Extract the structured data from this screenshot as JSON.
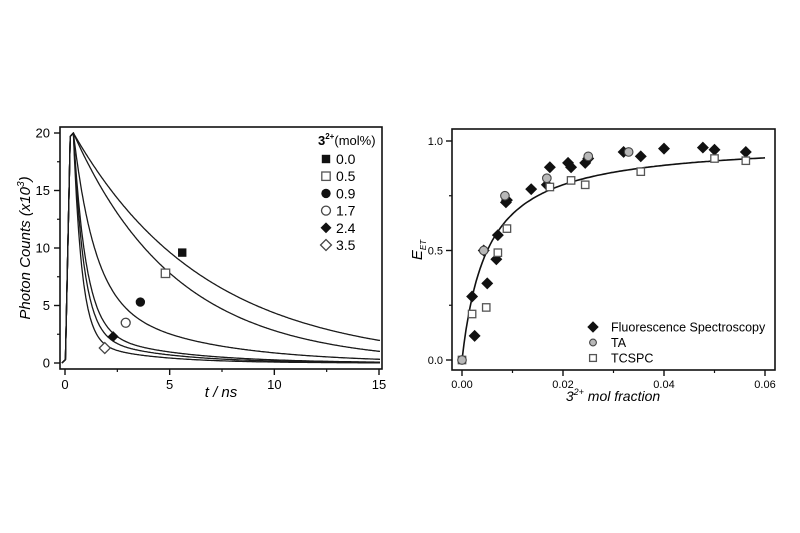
{
  "chart_data": [
    {
      "type": "line",
      "title": "",
      "xlabel": "t / ns",
      "ylabel": "Photon Counts (x10^3)",
      "ylabel_parts": {
        "main": "Photon Counts (x10",
        "sup": "3",
        "close": ")"
      },
      "xlim": [
        -0.2,
        15.15
      ],
      "ylim": [
        -0.5,
        20.9
      ],
      "x_ticks": [
        0,
        5,
        10,
        15
      ],
      "x_tick_labels": [
        "0",
        "5",
        "10",
        "15"
      ],
      "x_minor_ticks": [
        2.5,
        7.5,
        12.5
      ],
      "y_ticks": [
        0,
        5,
        10,
        15,
        20
      ],
      "y_tick_labels": [
        "0",
        "5",
        "10",
        "15",
        "20"
      ],
      "y_minor_ticks": [
        2.5,
        7.5,
        12.5,
        17.5
      ],
      "grid": false,
      "legend": {
        "position": "upper right",
        "title_main": "3",
        "title_sup": "2+",
        "title_rest": "(mol%)",
        "entries": [
          {
            "label": "0.0",
            "marker": "filled-square"
          },
          {
            "label": "0.5",
            "marker": "open-square"
          },
          {
            "label": "0.9",
            "marker": "filled-circle"
          },
          {
            "label": "1.7",
            "marker": "open-circle"
          },
          {
            "label": "2.4",
            "marker": "filled-diamond"
          },
          {
            "label": "3.5",
            "marker": "open-diamond"
          }
        ]
      },
      "decay_peak_time_ns": 0.4,
      "decay_peak_counts": 20,
      "series": [
        {
          "name": "0.0 mol%",
          "marker": "filled-square",
          "marker_at": [
            5.6,
            9.6
          ],
          "decay": [
            {
              "amp": 1.0,
              "tau": 6.3
            }
          ],
          "approx_points": {
            "t": [
              0.4,
              2.5,
              5.0,
              7.5,
              10.0,
              12.5,
              15.0
            ],
            "counts": [
              20.0,
              14.4,
              9.6,
              6.7,
              4.6,
              3.1,
              2.0
            ]
          }
        },
        {
          "name": "0.5 mol%",
          "marker": "open-square",
          "marker_at": [
            4.8,
            7.8
          ],
          "decay": [
            {
              "amp": 1.0,
              "tau": 4.9
            }
          ],
          "approx_points": {
            "t": [
              0.4,
              2.5,
              5.0,
              7.5,
              10.0,
              12.5,
              15.0
            ],
            "counts": [
              20.0,
              13.0,
              7.8,
              4.7,
              2.8,
              1.7,
              1.0
            ]
          }
        },
        {
          "name": "0.9 mol%",
          "marker": "filled-circle",
          "marker_at": [
            3.6,
            5.3
          ],
          "decay": [
            {
              "amp": 0.7,
              "tau": 1.0
            },
            {
              "amp": 0.3,
              "tau": 5.0
            }
          ],
          "approx_points": {
            "t": [
              0.4,
              2.5,
              5.0,
              7.5,
              10.0,
              12.5,
              15.0
            ],
            "counts": [
              20.0,
              5.9,
              2.5,
              1.4,
              0.9,
              0.5,
              0.3
            ]
          }
        },
        {
          "name": "1.7 mol%",
          "marker": "open-circle",
          "marker_at": [
            2.9,
            3.5
          ],
          "decay": [
            {
              "amp": 0.85,
              "tau": 0.6
            },
            {
              "amp": 0.15,
              "tau": 4.0
            }
          ],
          "approx_points": {
            "t": [
              0.4,
              2.5,
              5.0,
              7.5,
              10.0,
              12.5,
              15.0
            ],
            "counts": [
              20.0,
              2.2,
              0.9,
              0.5,
              0.3,
              0.15,
              0.08
            ]
          }
        },
        {
          "name": "2.4 mol%",
          "marker": "filled-diamond",
          "marker_at": [
            2.3,
            2.3
          ],
          "decay": [
            {
              "amp": 0.87,
              "tau": 0.5
            },
            {
              "amp": 0.13,
              "tau": 3.5
            }
          ],
          "approx_points": {
            "t": [
              0.4,
              2.5,
              5.0,
              7.5,
              10.0,
              12.5,
              15.0
            ],
            "counts": [
              20.0,
              1.6,
              0.6,
              0.3,
              0.15,
              0.08,
              0.04
            ]
          }
        },
        {
          "name": "3.5 mol%",
          "marker": "open-diamond",
          "marker_at": [
            1.9,
            1.3
          ],
          "decay": [
            {
              "amp": 0.9,
              "tau": 0.4
            },
            {
              "amp": 0.1,
              "tau": 3.0
            }
          ],
          "approx_points": {
            "t": [
              0.4,
              2.5,
              5.0,
              7.5,
              10.0,
              12.5,
              15.0
            ],
            "counts": [
              20.0,
              1.0,
              0.4,
              0.2,
              0.08,
              0.03,
              0.02
            ]
          }
        }
      ]
    },
    {
      "type": "scatter",
      "title": "",
      "xlabel": "3^2+ mol fraction",
      "xlabel_parts": {
        "main": "3",
        "sup": "2+",
        "rest": " mol fraction"
      },
      "ylabel": "E_ET",
      "ylabel_parts": {
        "main": "E",
        "sub": "ET"
      },
      "xlim": [
        -0.0018,
        0.0618
      ],
      "ylim": [
        -0.05,
        1.09
      ],
      "x_ticks": [
        0.0,
        0.02,
        0.04,
        0.06
      ],
      "x_tick_labels": [
        "0.00",
        "0.02",
        "0.04",
        "0.06"
      ],
      "x_minor_ticks": [
        0.01,
        0.03,
        0.05
      ],
      "y_ticks": [
        0.0,
        0.5,
        1.0
      ],
      "y_tick_labels": [
        "0.0",
        "0.5",
        "1.0"
      ],
      "y_minor_ticks": [
        0.25,
        0.75
      ],
      "grid": false,
      "legend": {
        "position": "lower right",
        "entries": [
          {
            "label": "Fluorescence Spectroscopy",
            "marker": "filled-diamond"
          },
          {
            "label": "TA",
            "marker": "gray-circle"
          },
          {
            "label": "TCSPC",
            "marker": "open-square"
          }
        ]
      },
      "fit": {
        "type": "line",
        "equation": "E = A*x/(K+x)",
        "A": 1.0,
        "K": 0.005,
        "x_range": [
          0.0,
          0.06
        ]
      },
      "series": [
        {
          "name": "Fluorescence Spectroscopy",
          "marker": "filled-diamond",
          "x": [
            0.002,
            0.0025,
            0.0043,
            0.005,
            0.0068,
            0.0071,
            0.0087,
            0.0089,
            0.0137,
            0.0168,
            0.0174,
            0.021,
            0.0216,
            0.0244,
            0.025,
            0.032,
            0.0354,
            0.04,
            0.0477,
            0.05,
            0.0562
          ],
          "y": [
            0.29,
            0.11,
            0.5,
            0.35,
            0.46,
            0.57,
            0.72,
            0.73,
            0.78,
            0.8,
            0.88,
            0.9,
            0.88,
            0.9,
            0.92,
            0.95,
            0.93,
            0.965,
            0.97,
            0.96,
            0.95
          ]
        },
        {
          "name": "TA",
          "marker": "gray-circle",
          "x": [
            0.0,
            0.0043,
            0.0085,
            0.0168,
            0.025,
            0.033
          ],
          "y": [
            0.0,
            0.5,
            0.75,
            0.83,
            0.93,
            0.95
          ]
        },
        {
          "name": "TCSPC",
          "marker": "open-square",
          "x": [
            0.0,
            0.002,
            0.0048,
            0.0071,
            0.0089,
            0.0174,
            0.0216,
            0.0244,
            0.0354,
            0.05,
            0.0562
          ],
          "y": [
            0.0,
            0.21,
            0.24,
            0.49,
            0.6,
            0.79,
            0.82,
            0.8,
            0.86,
            0.92,
            0.91
          ]
        }
      ]
    }
  ]
}
